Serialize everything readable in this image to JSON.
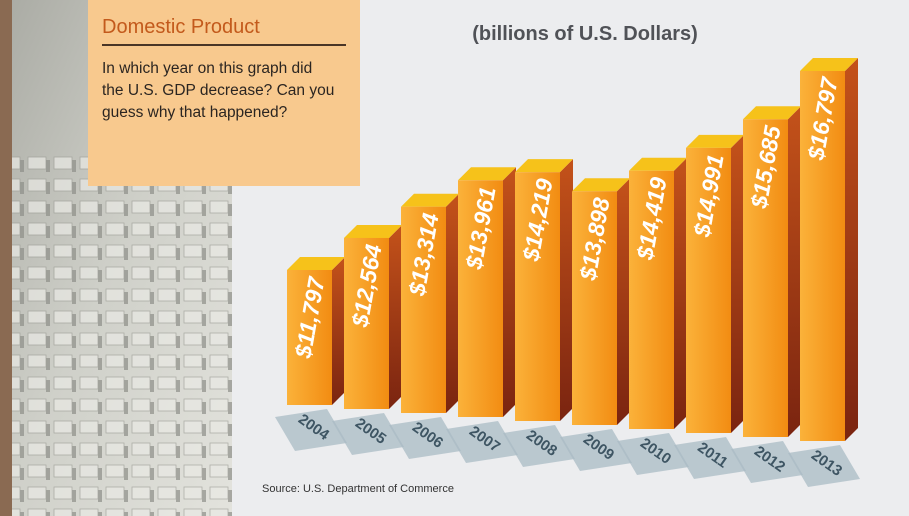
{
  "header": {
    "title": "Domestic Product",
    "question": "In which year on this graph did the U.S. GDP decrease? Can you guess why that happened?"
  },
  "chart_data": {
    "type": "bar3d",
    "subtitle": "(billions of U.S. Dollars)",
    "categories": [
      "2004",
      "2005",
      "2006",
      "2007",
      "2008",
      "2009",
      "2010",
      "2011",
      "2012",
      "2013"
    ],
    "values": [
      11797,
      12564,
      13314,
      13961,
      14219,
      13898,
      14419,
      14991,
      15685,
      16797
    ],
    "value_labels": [
      "$11,797",
      "$12,564",
      "$13,314",
      "$13,961",
      "$14,219",
      "$13,898",
      "$14,419",
      "$14,991",
      "$15,685",
      "$16,797"
    ],
    "color": "#f59a1e",
    "source": "Source: U.S. Department of Commerce"
  }
}
